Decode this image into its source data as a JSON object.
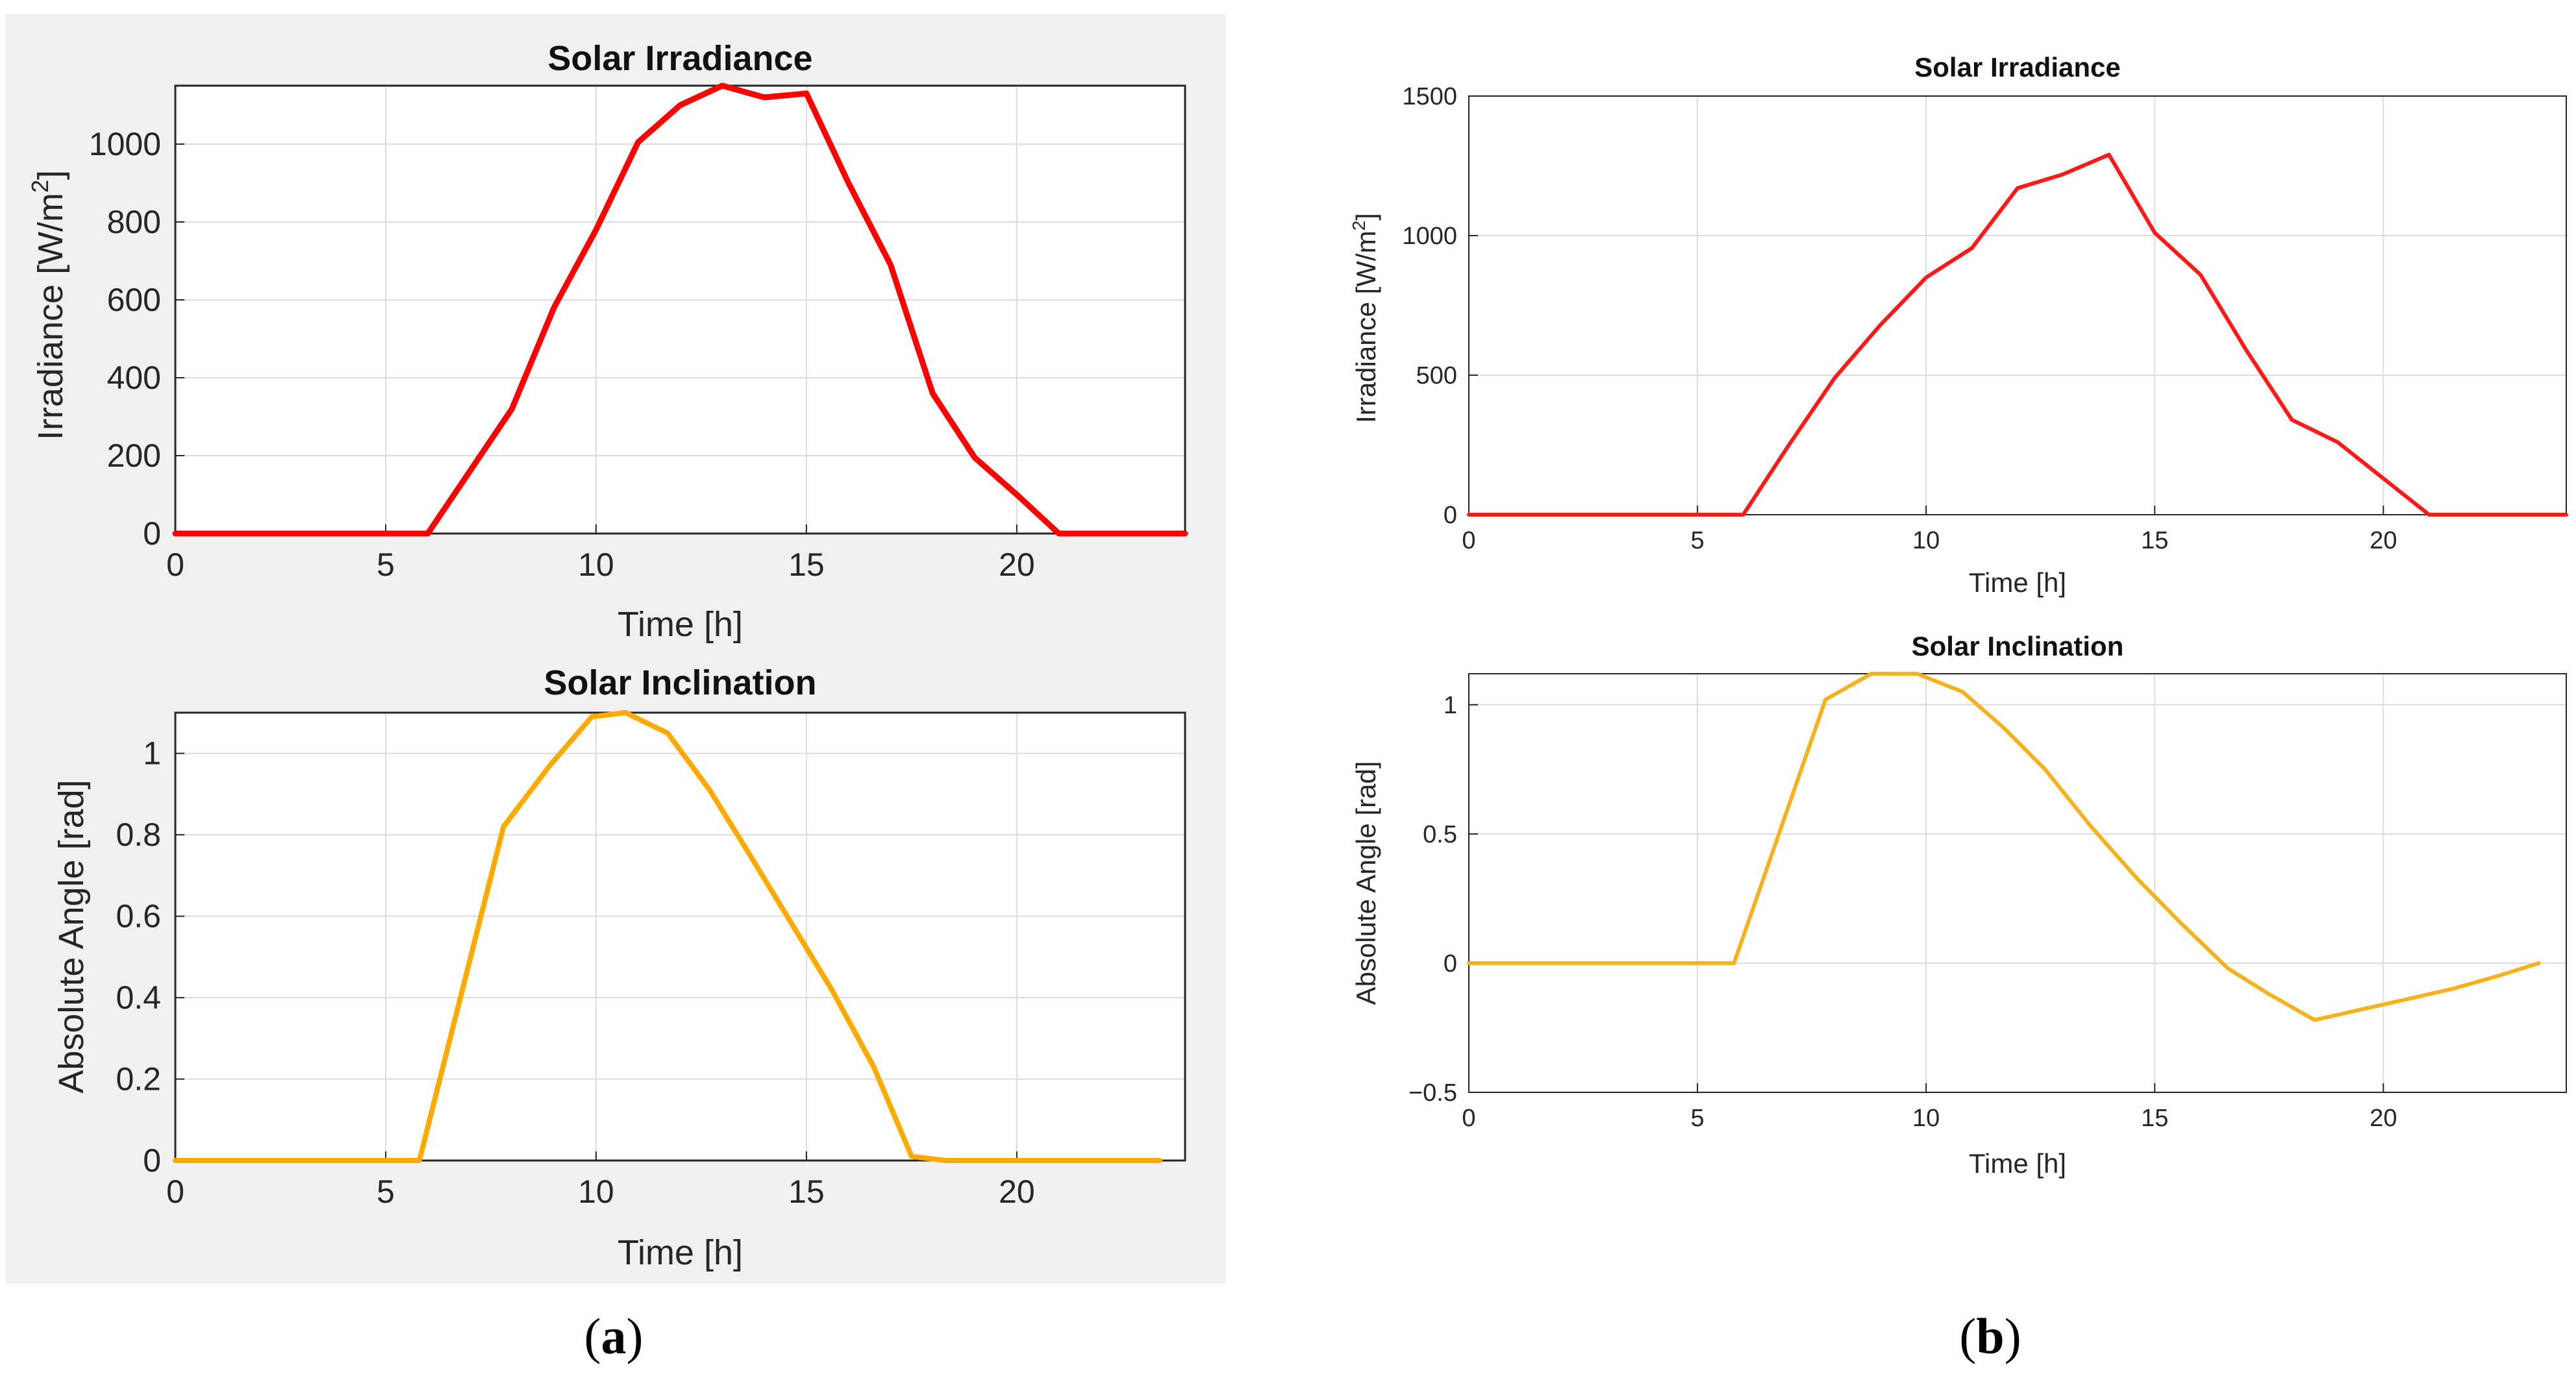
{
  "panels": [
    {
      "letter": "a",
      "caption_open": "(",
      "caption_close": ")"
    },
    {
      "letter": "b",
      "caption_open": "(",
      "caption_close": ")"
    }
  ],
  "labels": {
    "a_irr_ylabel_main": "Irradiance [W/m",
    "a_irr_ylabel_sup": "2",
    "a_irr_ylabel_end": "]",
    "b_irr_ylabel_main": "Irradiance [W/m",
    "b_irr_ylabel_sup": "2",
    "b_irr_ylabel_end": "]"
  },
  "chart_data": [
    {
      "id": "a_irr",
      "panel": "a",
      "type": "line",
      "title": "Solar Irradiance",
      "xlabel": "Time [h]",
      "ylabel": "Irradiance [W/m2]",
      "xlim": [
        0,
        24
      ],
      "ylim": [
        0,
        1150
      ],
      "xticks": [
        0,
        5,
        10,
        15,
        20
      ],
      "yticks": [
        0,
        200,
        400,
        600,
        800,
        1000
      ],
      "grid": true,
      "color": "#ff0000",
      "series": [
        {
          "name": "Irradiance",
          "x": [
            0,
            6,
            8,
            9,
            10,
            11,
            12,
            13,
            14,
            15,
            16,
            17,
            18,
            19,
            20,
            21,
            24
          ],
          "y": [
            0,
            0,
            320,
            580,
            780,
            1005,
            1100,
            1150,
            1120,
            1130,
            900,
            690,
            360,
            195,
            100,
            0,
            0
          ]
        }
      ]
    },
    {
      "id": "a_incl",
      "panel": "a",
      "type": "line",
      "title": "Solar Inclination",
      "xlabel": "Time [h]",
      "ylabel": "Absolute Angle [rad]",
      "xlim": [
        0,
        24
      ],
      "ylim": [
        0,
        1.1
      ],
      "xticks": [
        0,
        5,
        10,
        15,
        20
      ],
      "yticks": [
        0,
        0.2,
        0.4,
        0.6,
        0.8,
        1
      ],
      "grid": true,
      "color": "#ffaa00",
      "series": [
        {
          "name": "Inclination",
          "x": [
            0,
            5.8,
            7.8,
            8.9,
            9.9,
            10.7,
            11.7,
            12.7,
            13.6,
            14.6,
            15.6,
            16.6,
            17.5,
            18.3,
            23.4
          ],
          "y": [
            0,
            0,
            0.82,
            0.97,
            1.09,
            1.1,
            1.05,
            0.91,
            0.76,
            0.59,
            0.42,
            0.23,
            0.01,
            0,
            0
          ]
        }
      ]
    },
    {
      "id": "b_irr",
      "panel": "b",
      "type": "line",
      "title": "Solar Irradiance",
      "xlabel": "Time [h]",
      "ylabel": "Irradiance [W/m2]",
      "xlim": [
        0,
        24
      ],
      "ylim": [
        0,
        1500
      ],
      "xticks": [
        0,
        5,
        10,
        15,
        20
      ],
      "yticks": [
        0,
        500,
        1000,
        1500
      ],
      "grid": true,
      "color": "#ff1a1a",
      "series": [
        {
          "name": "Irradiance",
          "x": [
            0,
            6,
            7,
            8,
            9,
            10,
            11,
            12,
            13,
            14,
            15,
            16,
            17,
            18,
            19,
            20,
            21,
            24
          ],
          "y": [
            0,
            0,
            250,
            490,
            680,
            850,
            955,
            1170,
            1220,
            1290,
            1010,
            860,
            590,
            340,
            260,
            130,
            0,
            0
          ]
        }
      ]
    },
    {
      "id": "b_incl",
      "panel": "b",
      "type": "line",
      "title": "Solar Inclination",
      "xlabel": "Time [h]",
      "ylabel": "Absolute Angle [rad]",
      "xlim": [
        0,
        24
      ],
      "ylim": [
        -0.5,
        1.12
      ],
      "xticks": [
        0,
        5,
        10,
        15,
        20
      ],
      "yticks": [
        -0.5,
        0,
        0.5,
        1
      ],
      "ytick_labels": [
        "−0.5",
        "0",
        "0.5",
        "1"
      ],
      "grid": true,
      "color": "#f5b21e",
      "series": [
        {
          "name": "Inclination",
          "x": [
            0,
            5.8,
            7.8,
            8.8,
            9.8,
            10.8,
            11.7,
            12.6,
            13.6,
            14.6,
            15.6,
            16.6,
            17.5,
            18.5,
            19.5,
            20.5,
            21.5,
            22.5,
            23.4
          ],
          "y": [
            0,
            0,
            1.02,
            1.12,
            1.12,
            1.05,
            0.91,
            0.75,
            0.53,
            0.33,
            0.15,
            -0.02,
            -0.12,
            -0.22,
            -0.18,
            -0.14,
            -0.1,
            -0.05,
            0
          ]
        }
      ]
    }
  ]
}
